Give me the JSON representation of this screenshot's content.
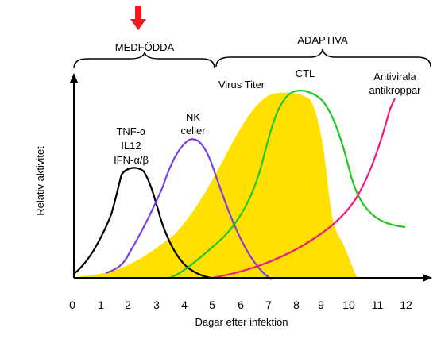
{
  "header": {
    "innate_label": "MEDFÖDDA",
    "adaptive_label": "ADAPTIVA"
  },
  "labels": {
    "cytokines_line1": "TNF-α",
    "cytokines_line2": "IL12",
    "cytokines_line3": "IFN-α/β",
    "nk_line1": "NK",
    "nk_line2": "celler",
    "virus_titer": "Virus Titer",
    "ctl": "CTL",
    "antibodies_line1": "Antivirala",
    "antibodies_line2": "antikroppar"
  },
  "axes": {
    "x_label": "Dagar efter infektion",
    "y_label": "Relativ aktivitet",
    "x_ticks": [
      "0",
      "1",
      "2",
      "3",
      "4",
      "5",
      "6",
      "7",
      "8",
      "9",
      "10",
      "11",
      "12"
    ]
  },
  "colors": {
    "arrow": "#ee1c1c",
    "virus_fill": "#ffe000",
    "cytokines": "#000000",
    "nk": "#7b3fe4",
    "ctl": "#1ec81e",
    "antibodies": "#f0197c"
  }
}
